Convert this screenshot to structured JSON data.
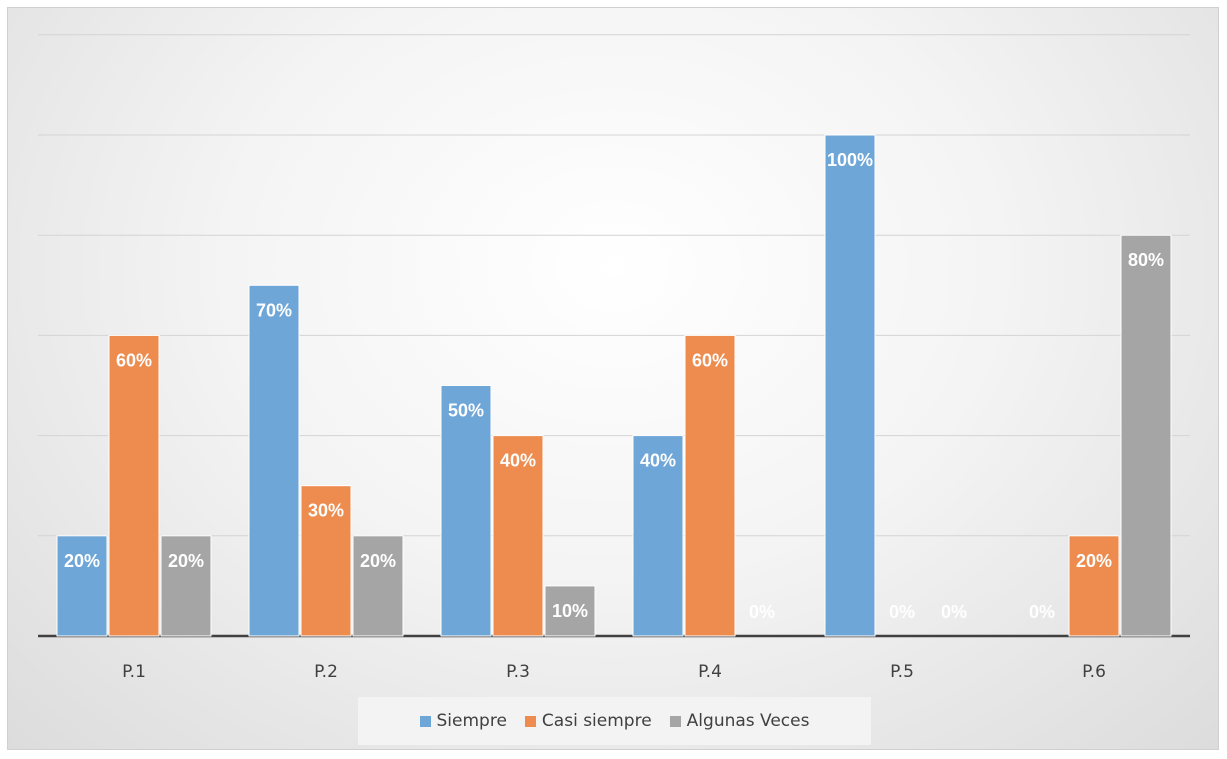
{
  "chart_data": {
    "type": "bar",
    "title": "",
    "xlabel": "",
    "ylabel": "",
    "categories": [
      "P.1",
      "P.2",
      "P.3",
      "P.4",
      "P.5",
      "P.6"
    ],
    "ylim": [
      0,
      1.0
    ],
    "grid": true,
    "legend_position": "bottom",
    "series": [
      {
        "name": "Siempre",
        "color": "#6fa6d8",
        "values": [
          0.2,
          0.7,
          0.5,
          0.4,
          1.0,
          0.0
        ],
        "labels": [
          "20%",
          "70%",
          "50%",
          "40%",
          "100%",
          "0%"
        ]
      },
      {
        "name": "Casi siempre",
        "color": "#ed8c4e",
        "values": [
          0.6,
          0.3,
          0.4,
          0.6,
          0.0,
          0.2
        ],
        "labels": [
          "60%",
          "30%",
          "40%",
          "60%",
          "0%",
          "20%"
        ]
      },
      {
        "name": "Algunas Veces",
        "color": "#a5a5a5",
        "values": [
          0.2,
          0.2,
          0.1,
          0.0,
          0.0,
          0.8
        ],
        "labels": [
          "20%",
          "20%",
          "10%",
          "0%",
          "0%",
          "80%"
        ]
      }
    ]
  },
  "legend": {
    "items": [
      {
        "label": "Siempre",
        "color": "#6fa6d8"
      },
      {
        "label": "Casi siempre",
        "color": "#ed8c4e"
      },
      {
        "label": "Algunas Veces",
        "color": "#a5a5a5"
      }
    ]
  }
}
